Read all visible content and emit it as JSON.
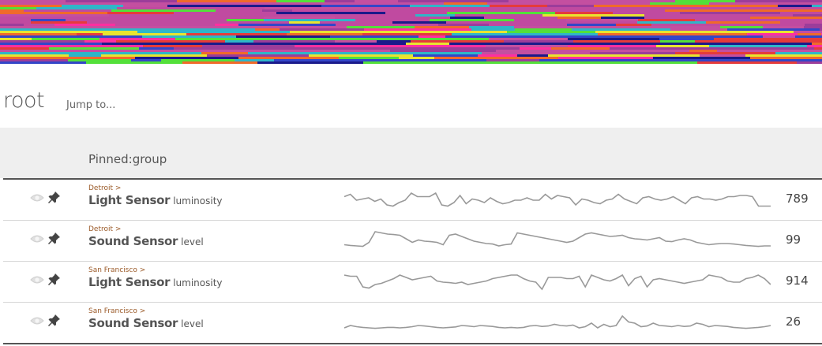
{
  "banner": {
    "name": "color-stripe-banner",
    "palette": [
      "#9c3d9a",
      "#c44fa0",
      "#2fb6c8",
      "#e8e52f",
      "#f06a2a",
      "#3346c8",
      "#53e03a",
      "#e53b3b",
      "#1a1a8a",
      "#ff2fa0"
    ]
  },
  "page": {
    "title": "root",
    "jump_to": "Jump to..."
  },
  "group": {
    "title": "Pinned:group"
  },
  "sensors": [
    {
      "location": "Detroit >",
      "name": "Light Sensor",
      "metric": "luminosity",
      "value": "789",
      "sparkline": [
        0.45,
        0.35,
        0.6,
        0.55,
        0.5,
        0.65,
        0.55,
        0.8,
        0.85,
        0.7,
        0.6,
        0.3,
        0.45,
        0.45,
        0.45,
        0.3,
        0.8,
        0.85,
        0.7,
        0.4,
        0.75,
        0.55,
        0.6,
        0.7,
        0.5,
        0.65,
        0.75,
        0.7,
        0.6,
        0.6,
        0.5,
        0.6,
        0.6,
        0.35,
        0.55,
        0.4,
        0.45,
        0.5,
        0.8,
        0.55,
        0.6,
        0.7,
        0.75,
        0.6,
        0.55,
        0.35,
        0.55,
        0.65,
        0.75,
        0.5,
        0.45,
        0.55,
        0.6,
        0.55,
        0.45,
        0.6,
        0.75,
        0.5,
        0.45,
        0.55,
        0.55,
        0.6,
        0.55,
        0.45,
        0.45,
        0.4,
        0.4,
        0.45,
        0.85,
        0.85,
        0.85
      ]
    },
    {
      "location": "Detroit >",
      "name": "Sound Sensor",
      "metric": "level",
      "value": "99",
      "sparkline": [
        0.75,
        0.78,
        0.8,
        0.82,
        0.65,
        0.2,
        0.25,
        0.3,
        0.32,
        0.35,
        0.5,
        0.65,
        0.55,
        0.6,
        0.62,
        0.65,
        0.75,
        0.35,
        0.3,
        0.4,
        0.5,
        0.6,
        0.65,
        0.7,
        0.72,
        0.8,
        0.75,
        0.72,
        0.25,
        0.3,
        0.35,
        0.4,
        0.45,
        0.5,
        0.55,
        0.6,
        0.65,
        0.6,
        0.45,
        0.3,
        0.25,
        0.3,
        0.35,
        0.4,
        0.38,
        0.35,
        0.45,
        0.5,
        0.52,
        0.55,
        0.5,
        0.45,
        0.6,
        0.62,
        0.55,
        0.5,
        0.55,
        0.65,
        0.7,
        0.75,
        0.72,
        0.7,
        0.7,
        0.72,
        0.75,
        0.78,
        0.8,
        0.82,
        0.8,
        0.8
      ]
    },
    {
      "location": "San Francisco >",
      "name": "Light Sensor",
      "metric": "luminosity",
      "value": "914",
      "sparkline": [
        0.3,
        0.35,
        0.35,
        0.8,
        0.85,
        0.7,
        0.65,
        0.55,
        0.45,
        0.3,
        0.4,
        0.5,
        0.45,
        0.4,
        0.35,
        0.55,
        0.6,
        0.62,
        0.65,
        0.6,
        0.7,
        0.65,
        0.6,
        0.55,
        0.45,
        0.4,
        0.35,
        0.3,
        0.3,
        0.45,
        0.55,
        0.6,
        0.9,
        0.4,
        0.4,
        0.4,
        0.45,
        0.45,
        0.35,
        0.8,
        0.3,
        0.4,
        0.5,
        0.55,
        0.45,
        0.3,
        0.75,
        0.45,
        0.35,
        0.8,
        0.5,
        0.45,
        0.5,
        0.55,
        0.6,
        0.65,
        0.6,
        0.55,
        0.5,
        0.3,
        0.35,
        0.4,
        0.55,
        0.6,
        0.6,
        0.45,
        0.4,
        0.3,
        0.45,
        0.7
      ]
    },
    {
      "location": "San Francisco >",
      "name": "Sound Sensor",
      "metric": "level",
      "value": "26",
      "sparkline": [
        0.8,
        0.7,
        0.75,
        0.78,
        0.8,
        0.82,
        0.8,
        0.78,
        0.78,
        0.8,
        0.78,
        0.75,
        0.7,
        0.72,
        0.75,
        0.78,
        0.8,
        0.78,
        0.76,
        0.7,
        0.72,
        0.75,
        0.7,
        0.72,
        0.74,
        0.78,
        0.8,
        0.78,
        0.8,
        0.78,
        0.72,
        0.7,
        0.74,
        0.72,
        0.65,
        0.7,
        0.72,
        0.68,
        0.8,
        0.75,
        0.6,
        0.8,
        0.65,
        0.75,
        0.7,
        0.3,
        0.55,
        0.6,
        0.75,
        0.72,
        0.6,
        0.7,
        0.72,
        0.75,
        0.7,
        0.74,
        0.72,
        0.6,
        0.65,
        0.75,
        0.7,
        0.72,
        0.74,
        0.78,
        0.8,
        0.82,
        0.8,
        0.78,
        0.75,
        0.7
      ]
    }
  ]
}
